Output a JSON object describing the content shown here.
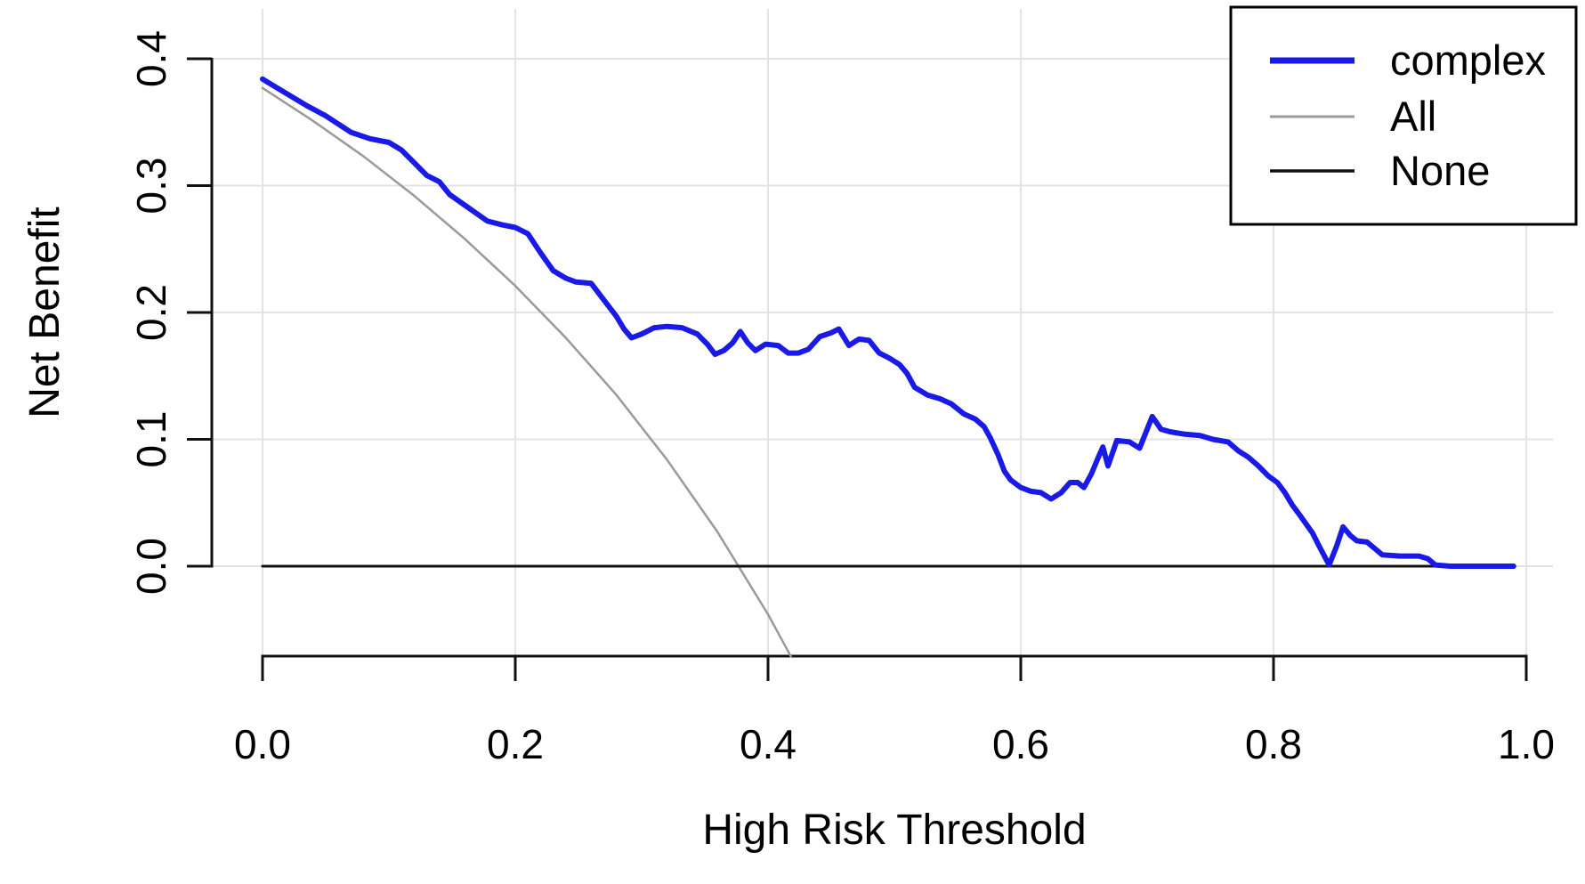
{
  "chart_data": {
    "type": "line",
    "title": "",
    "xlabel": "High Risk Threshold",
    "ylabel": "Net Benefit",
    "xlim": [
      0.0,
      1.0
    ],
    "ylim_drawn": [
      -0.071,
      0.4
    ],
    "grid": true,
    "grid_color": "#e3e3e3",
    "axis_color": "#111111",
    "legend_position": "top-right",
    "x_ticks": {
      "values": [
        0.0,
        0.2,
        0.4,
        0.6,
        0.8,
        1.0
      ],
      "labels": [
        "0.0",
        "0.2",
        "0.4",
        "0.6",
        "0.8",
        "1.0"
      ]
    },
    "y_ticks": {
      "values": [
        0.0,
        0.1,
        0.2,
        0.3,
        0.4
      ],
      "labels": [
        "0.0",
        "0.1",
        "0.2",
        "0.3",
        "0.4"
      ]
    },
    "series": [
      {
        "name": "complex",
        "color": "#1a1ae6",
        "stroke_width": 6,
        "legend_stroke_width": 7,
        "points": [
          [
            0.0,
            0.384
          ],
          [
            0.01,
            0.378
          ],
          [
            0.02,
            0.372
          ],
          [
            0.035,
            0.363
          ],
          [
            0.05,
            0.355
          ],
          [
            0.07,
            0.342
          ],
          [
            0.085,
            0.337
          ],
          [
            0.1,
            0.334
          ],
          [
            0.11,
            0.328
          ],
          [
            0.12,
            0.318
          ],
          [
            0.13,
            0.308
          ],
          [
            0.14,
            0.303
          ],
          [
            0.148,
            0.293
          ],
          [
            0.158,
            0.286
          ],
          [
            0.168,
            0.279
          ],
          [
            0.178,
            0.272
          ],
          [
            0.19,
            0.269
          ],
          [
            0.2,
            0.267
          ],
          [
            0.21,
            0.262
          ],
          [
            0.22,
            0.247
          ],
          [
            0.23,
            0.233
          ],
          [
            0.24,
            0.227
          ],
          [
            0.248,
            0.224
          ],
          [
            0.26,
            0.223
          ],
          [
            0.27,
            0.21
          ],
          [
            0.28,
            0.197
          ],
          [
            0.286,
            0.187
          ],
          [
            0.292,
            0.18
          ],
          [
            0.3,
            0.183
          ],
          [
            0.31,
            0.188
          ],
          [
            0.32,
            0.189
          ],
          [
            0.332,
            0.188
          ],
          [
            0.344,
            0.183
          ],
          [
            0.352,
            0.175
          ],
          [
            0.358,
            0.167
          ],
          [
            0.365,
            0.17
          ],
          [
            0.372,
            0.176
          ],
          [
            0.378,
            0.185
          ],
          [
            0.384,
            0.176
          ],
          [
            0.39,
            0.17
          ],
          [
            0.398,
            0.175
          ],
          [
            0.408,
            0.174
          ],
          [
            0.416,
            0.168
          ],
          [
            0.424,
            0.168
          ],
          [
            0.432,
            0.171
          ],
          [
            0.441,
            0.181
          ],
          [
            0.45,
            0.184
          ],
          [
            0.456,
            0.187
          ],
          [
            0.464,
            0.174
          ],
          [
            0.472,
            0.179
          ],
          [
            0.48,
            0.178
          ],
          [
            0.488,
            0.168
          ],
          [
            0.496,
            0.164
          ],
          [
            0.504,
            0.159
          ],
          [
            0.51,
            0.152
          ],
          [
            0.516,
            0.141
          ],
          [
            0.526,
            0.135
          ],
          [
            0.536,
            0.132
          ],
          [
            0.545,
            0.128
          ],
          [
            0.555,
            0.12
          ],
          [
            0.564,
            0.116
          ],
          [
            0.571,
            0.11
          ],
          [
            0.576,
            0.101
          ],
          [
            0.582,
            0.088
          ],
          [
            0.587,
            0.075
          ],
          [
            0.592,
            0.068
          ],
          [
            0.6,
            0.062
          ],
          [
            0.608,
            0.059
          ],
          [
            0.616,
            0.058
          ],
          [
            0.624,
            0.053
          ],
          [
            0.632,
            0.058
          ],
          [
            0.639,
            0.066
          ],
          [
            0.645,
            0.066
          ],
          [
            0.65,
            0.062
          ],
          [
            0.656,
            0.073
          ],
          [
            0.661,
            0.085
          ],
          [
            0.665,
            0.094
          ],
          [
            0.669,
            0.079
          ],
          [
            0.676,
            0.099
          ],
          [
            0.686,
            0.098
          ],
          [
            0.694,
            0.093
          ],
          [
            0.704,
            0.118
          ],
          [
            0.711,
            0.108
          ],
          [
            0.718,
            0.106
          ],
          [
            0.73,
            0.104
          ],
          [
            0.742,
            0.103
          ],
          [
            0.752,
            0.1
          ],
          [
            0.764,
            0.098
          ],
          [
            0.772,
            0.091
          ],
          [
            0.78,
            0.086
          ],
          [
            0.788,
            0.079
          ],
          [
            0.796,
            0.071
          ],
          [
            0.803,
            0.066
          ],
          [
            0.809,
            0.058
          ],
          [
            0.815,
            0.048
          ],
          [
            0.821,
            0.04
          ],
          [
            0.826,
            0.033
          ],
          [
            0.831,
            0.026
          ],
          [
            0.836,
            0.016
          ],
          [
            0.844,
            0.001
          ],
          [
            0.85,
            0.016
          ],
          [
            0.855,
            0.031
          ],
          [
            0.861,
            0.024
          ],
          [
            0.866,
            0.02
          ],
          [
            0.874,
            0.019
          ],
          [
            0.88,
            0.014
          ],
          [
            0.886,
            0.009
          ],
          [
            0.9,
            0.008
          ],
          [
            0.915,
            0.008
          ],
          [
            0.922,
            0.006
          ],
          [
            0.928,
            0.001
          ],
          [
            0.94,
            0.0
          ],
          [
            0.96,
            0.0
          ],
          [
            0.975,
            0.0
          ],
          [
            0.99,
            0.0
          ]
        ]
      },
      {
        "name": "All",
        "color": "#9a9a9a",
        "stroke_width": 2.5,
        "legend_stroke_width": 3,
        "points": [
          [
            0.0,
            0.377
          ],
          [
            0.04,
            0.351
          ],
          [
            0.08,
            0.323
          ],
          [
            0.12,
            0.292
          ],
          [
            0.16,
            0.258
          ],
          [
            0.2,
            0.221
          ],
          [
            0.24,
            0.18
          ],
          [
            0.28,
            0.135
          ],
          [
            0.32,
            0.084
          ],
          [
            0.36,
            0.027
          ],
          [
            0.4,
            -0.038
          ],
          [
            0.418,
            -0.071
          ]
        ]
      },
      {
        "name": "None",
        "color": "#111111",
        "stroke_width": 3,
        "legend_stroke_width": 3.5,
        "points": [
          [
            0.0,
            0.0
          ],
          [
            0.99,
            0.0
          ]
        ]
      }
    ]
  }
}
